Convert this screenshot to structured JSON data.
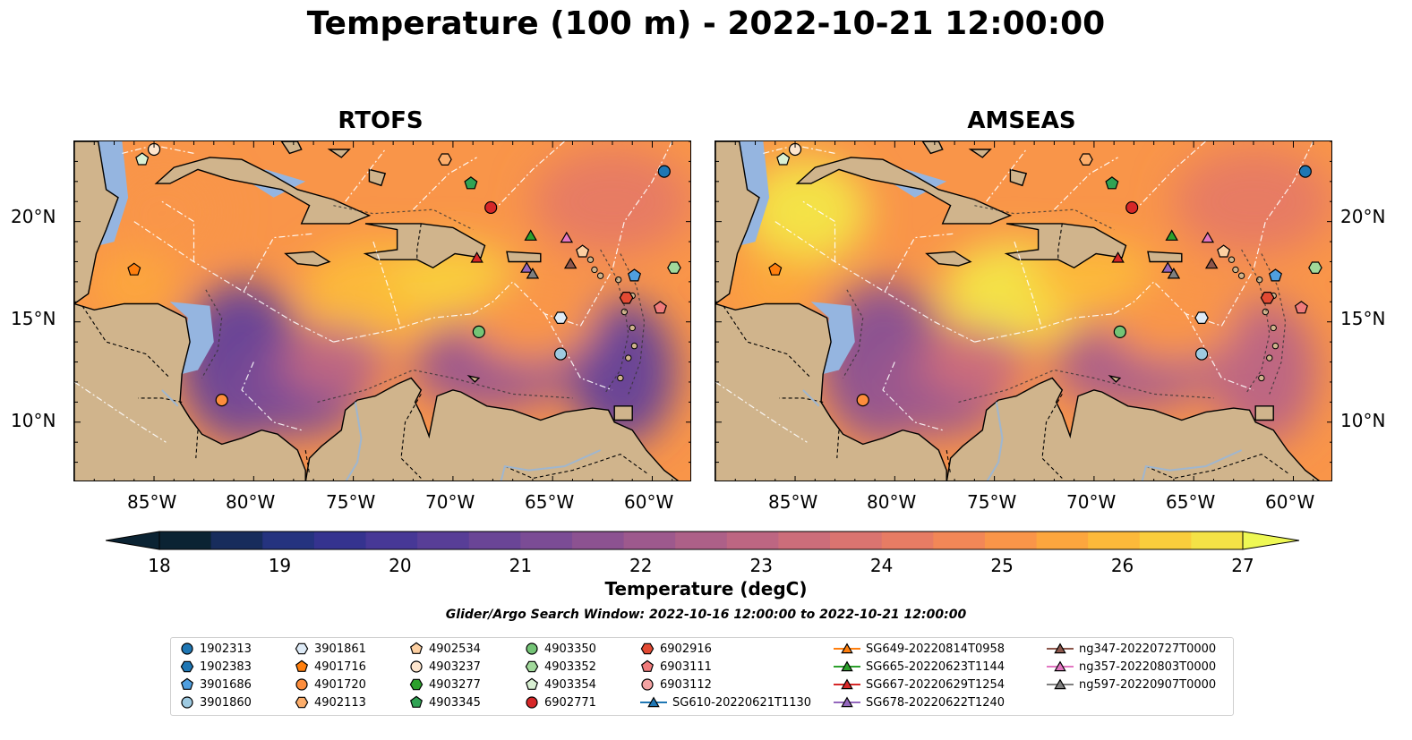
{
  "title": "Temperature (100 m) - 2022-10-21 12:00:00",
  "panels": [
    {
      "title": "RTOFS",
      "deep_color": "#0b2333"
    },
    {
      "title": "AMSEAS",
      "deep_color": "#95b5e0"
    }
  ],
  "lat_labels": [
    "20°N",
    "15°N",
    "10°N"
  ],
  "lon_labels": [
    "85°W",
    "80°W",
    "75°W",
    "70°W",
    "65°W",
    "60°W"
  ],
  "colorbar": {
    "label": "Temperature (degC)",
    "ticks": [
      "18",
      "19",
      "20",
      "21",
      "22",
      "23",
      "24",
      "25",
      "26",
      "27"
    ],
    "min": 18,
    "max": 27,
    "colors": [
      "#0b2333",
      "#172c5c",
      "#25337f",
      "#35338f",
      "#473896",
      "#583e97",
      "#6a4596",
      "#7b4c95",
      "#8c5291",
      "#9d598d",
      "#ad6088",
      "#bd6682",
      "#cc6d7a",
      "#da7470",
      "#e77c64",
      "#f28757",
      "#f99549",
      "#fca63e",
      "#fcb93a",
      "#f9cd3c",
      "#f4e246"
    ],
    "extend_end": "#eef854"
  },
  "search_window": "Glider/Argo Search Window: 2022-10-16 12:00:00 to 2022-10-21 12:00:00",
  "map_extent": {
    "lon": [
      -89,
      -58
    ],
    "lat": [
      7,
      24
    ]
  },
  "legend": [
    {
      "label": "1902313",
      "marker": "circle",
      "color": "#1f77b4"
    },
    {
      "label": "1902383",
      "marker": "hexagon",
      "color": "#1f77b4"
    },
    {
      "label": "3901686",
      "marker": "pentagon",
      "color": "#4f9fe0"
    },
    {
      "label": "3901860",
      "marker": "circle",
      "color": "#9ecae1"
    },
    {
      "label": "3901861",
      "marker": "hexagon",
      "color": "#deebf7"
    },
    {
      "label": "4901716",
      "marker": "pentagon",
      "color": "#ff7f0e"
    },
    {
      "label": "4901720",
      "marker": "circle",
      "color": "#fd8d3c"
    },
    {
      "label": "4902113",
      "marker": "hexagon",
      "color": "#fdae6b"
    },
    {
      "label": "4902534",
      "marker": "pentagon",
      "color": "#fdd0a2"
    },
    {
      "label": "4903237",
      "marker": "circle",
      "color": "#fee6ce"
    },
    {
      "label": "4903277",
      "marker": "hexagon",
      "color": "#2ca02c"
    },
    {
      "label": "4903345",
      "marker": "pentagon",
      "color": "#31a354"
    },
    {
      "label": "4903350",
      "marker": "circle",
      "color": "#74c476"
    },
    {
      "label": "4903352",
      "marker": "hexagon",
      "color": "#a1d99b"
    },
    {
      "label": "4903354",
      "marker": "pentagon",
      "color": "#d9f0d3"
    },
    {
      "label": "6902771",
      "marker": "circle",
      "color": "#d62728"
    },
    {
      "label": "6902916",
      "marker": "hexagon",
      "color": "#e34a33"
    },
    {
      "label": "6903111",
      "marker": "pentagon",
      "color": "#f07b7b"
    },
    {
      "label": "6903112",
      "marker": "circle",
      "color": "#f4a3a3"
    },
    {
      "label": "SG610-20220621T1130",
      "marker": "triangle",
      "color": "#1f77b4"
    },
    {
      "label": "SG649-20220814T0958",
      "marker": "triangle",
      "color": "#ff7f0e"
    },
    {
      "label": "SG665-20220623T1144",
      "marker": "triangle",
      "color": "#2ca02c"
    },
    {
      "label": "SG667-20220629T1254",
      "marker": "triangle",
      "color": "#d62728"
    },
    {
      "label": "SG678-20220622T1240",
      "marker": "triangle",
      "color": "#9467bd"
    },
    {
      "label": "ng347-20220727T0000",
      "marker": "triangle",
      "color": "#8c564b"
    },
    {
      "label": "ng357-20220803T0000",
      "marker": "triangle",
      "color": "#e377c2"
    },
    {
      "label": "ng597-20220907T0000",
      "marker": "triangle",
      "color": "#7f7f7f"
    }
  ],
  "platforms": [
    {
      "id": "1902313",
      "lon": -59.4,
      "lat": 22.5
    },
    {
      "id": "3901686",
      "lon": -60.9,
      "lat": 17.3
    },
    {
      "id": "3901860",
      "lon": -64.6,
      "lat": 13.4
    },
    {
      "id": "3901861",
      "lon": -64.6,
      "lat": 15.2
    },
    {
      "id": "4901716",
      "lon": -86.0,
      "lat": 17.6
    },
    {
      "id": "4901720",
      "lon": -81.6,
      "lat": 11.1
    },
    {
      "id": "4902113",
      "lon": -70.4,
      "lat": 23.1
    },
    {
      "id": "4902534",
      "lon": -63.5,
      "lat": 18.5
    },
    {
      "id": "4903237",
      "lon": -85.0,
      "lat": 23.6
    },
    {
      "id": "4903345",
      "lon": -69.1,
      "lat": 21.9
    },
    {
      "id": "4903350",
      "lon": -68.7,
      "lat": 14.5
    },
    {
      "id": "4903352",
      "lon": -58.9,
      "lat": 17.7
    },
    {
      "id": "4903354",
      "lon": -85.6,
      "lat": 23.1
    },
    {
      "id": "6902771",
      "lon": -68.1,
      "lat": 20.7
    },
    {
      "id": "6903111",
      "lon": -59.6,
      "lat": 15.7
    },
    {
      "id": "SG665-20220623T1144",
      "lon": -66.1,
      "lat": 19.3
    },
    {
      "id": "SG667-20220629T1254",
      "lon": -68.8,
      "lat": 18.2
    },
    {
      "id": "SG678-20220622T1240",
      "lon": -66.3,
      "lat": 17.7
    },
    {
      "id": "ng347-20220727T0000",
      "lon": -64.1,
      "lat": 17.9
    },
    {
      "id": "ng357-20220803T0000",
      "lon": -64.3,
      "lat": 19.2
    },
    {
      "id": "ng597-20220907T0000",
      "lon": -66.0,
      "lat": 17.4
    },
    {
      "id": "6902916",
      "lon": -61.3,
      "lat": 16.2
    }
  ]
}
